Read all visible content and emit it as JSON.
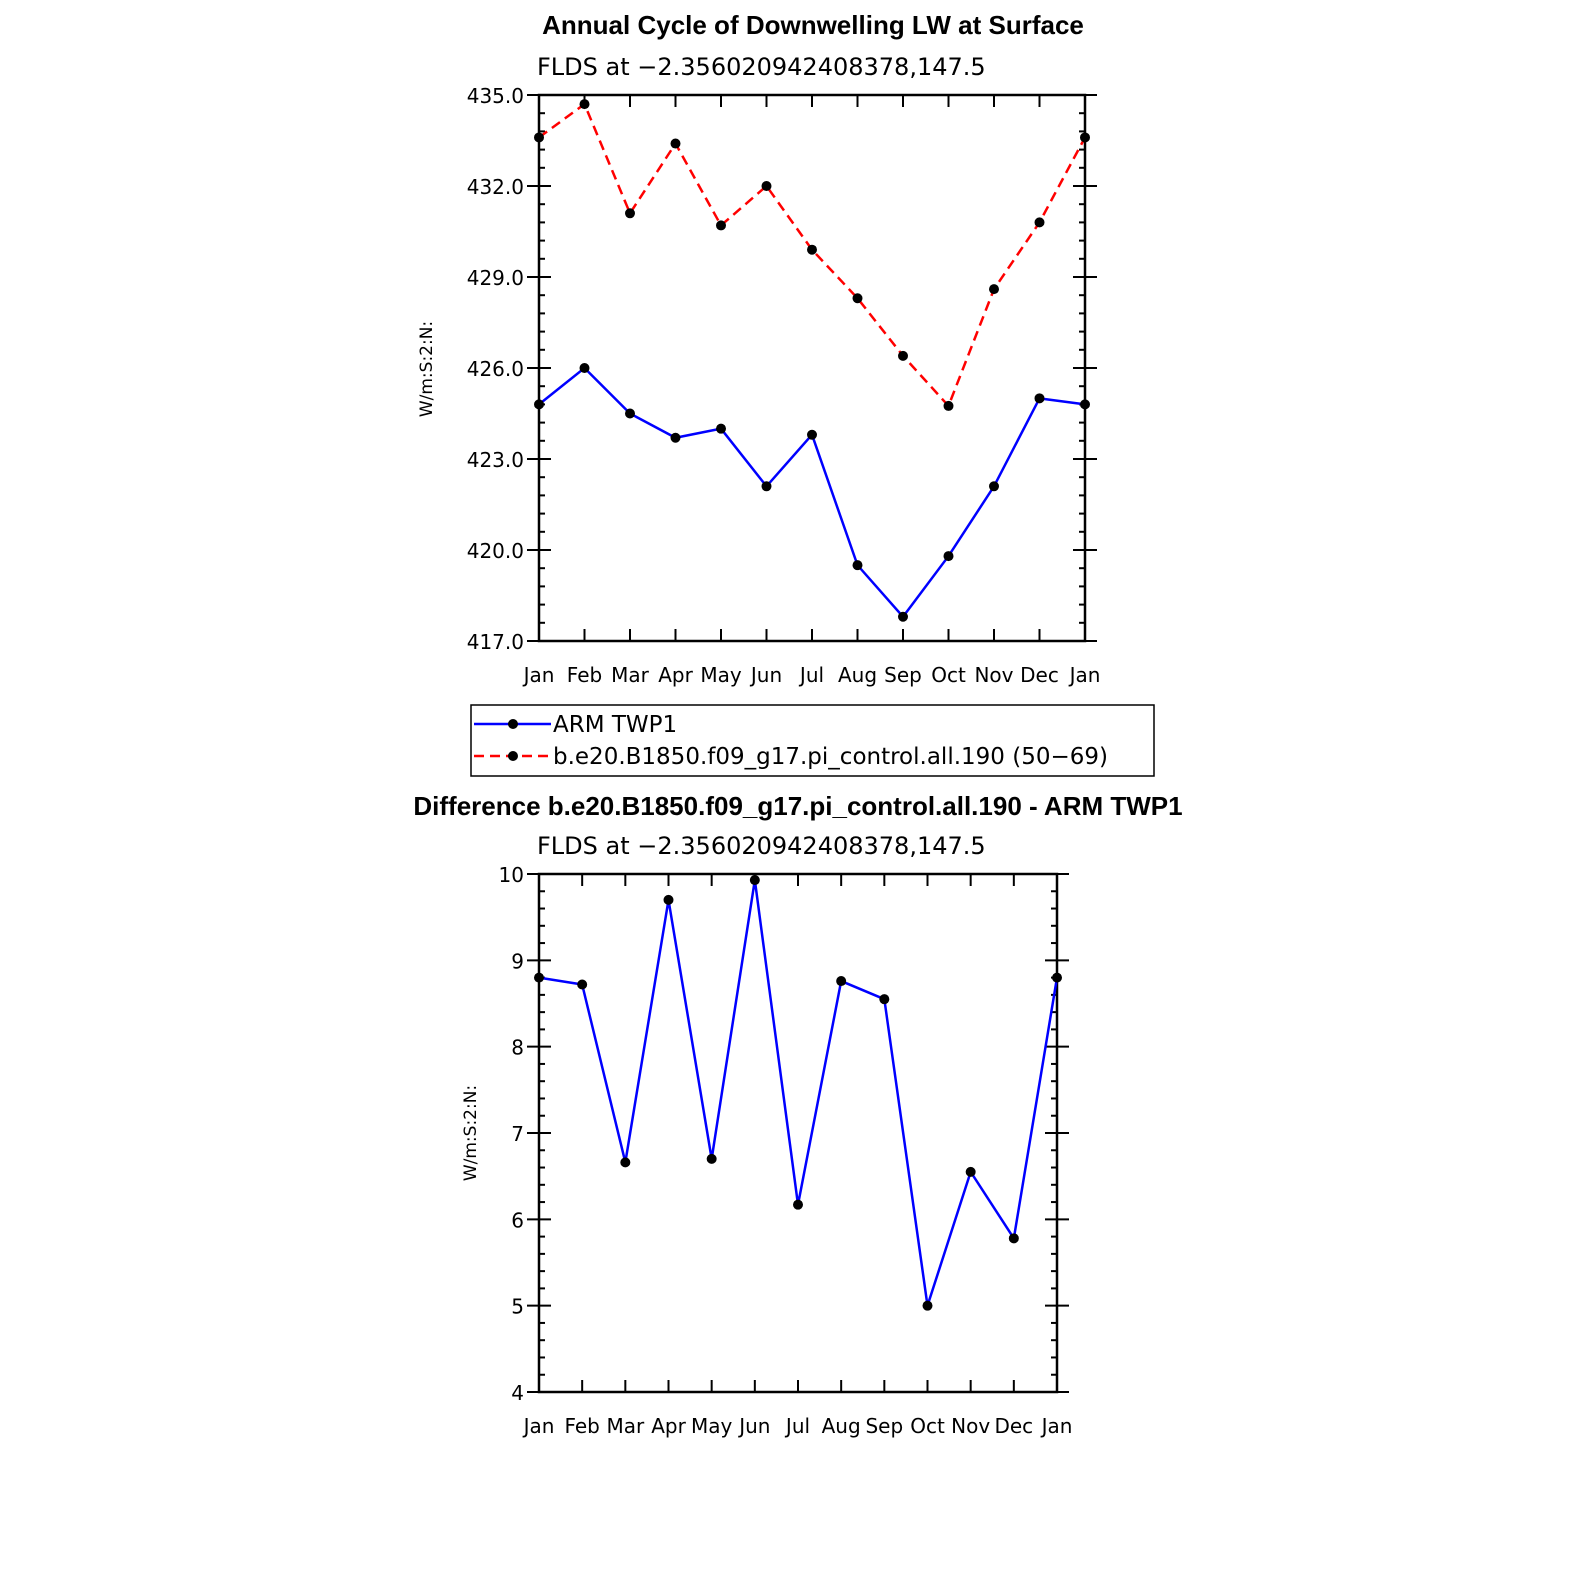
{
  "chart_data": [
    {
      "type": "line",
      "title": "Annual Cycle of Downwelling LW at Surface",
      "subtitle": "FLDS at −2.356020942408378,147.5",
      "ylabel": "W/m:S:2:N:",
      "categories": [
        "Jan",
        "Feb",
        "Mar",
        "Apr",
        "May",
        "Jun",
        "Jul",
        "Aug",
        "Sep",
        "Oct",
        "Nov",
        "Dec",
        "Jan"
      ],
      "ylim": [
        417.0,
        435.0
      ],
      "yticks": [
        "417.0",
        "420.0",
        "423.0",
        "426.0",
        "429.0",
        "432.0",
        "435.0"
      ],
      "grid": false,
      "legend_position": "below",
      "series": [
        {
          "name": "ARM TWP1",
          "color": "#0000ff",
          "dash": "solid",
          "marker": "filled-circle",
          "values": [
            424.8,
            426.0,
            424.5,
            423.7,
            424.0,
            422.1,
            423.8,
            419.5,
            417.8,
            419.8,
            422.1,
            425.0,
            424.8
          ]
        },
        {
          "name": "b.e20.B1850.f09_g17.pi_control.all.190 (50−69)",
          "color": "#ff0000",
          "dash": "dashed",
          "marker": "filled-circle",
          "values": [
            433.6,
            434.7,
            431.1,
            433.4,
            430.7,
            432.0,
            429.9,
            428.3,
            426.4,
            424.75,
            428.6,
            430.8,
            433.6
          ]
        }
      ]
    },
    {
      "type": "line",
      "title": "Difference b.e20.B1850.f09_g17.pi_control.all.190 - ARM TWP1",
      "subtitle": "FLDS at −2.356020942408378,147.5",
      "ylabel": "W/m:S:2:N:",
      "categories": [
        "Jan",
        "Feb",
        "Mar",
        "Apr",
        "May",
        "Jun",
        "Jul",
        "Aug",
        "Sep",
        "Oct",
        "Nov",
        "Dec",
        "Jan"
      ],
      "ylim": [
        4,
        10
      ],
      "yticks": [
        "4",
        "5",
        "6",
        "7",
        "8",
        "9",
        "10"
      ],
      "grid": false,
      "series": [
        {
          "color": "#0000ff",
          "dash": "solid",
          "marker": "filled-circle",
          "values": [
            8.8,
            8.72,
            6.66,
            9.7,
            6.7,
            9.93,
            6.17,
            8.76,
            8.55,
            5.0,
            6.55,
            5.78,
            8.8
          ]
        }
      ]
    }
  ]
}
